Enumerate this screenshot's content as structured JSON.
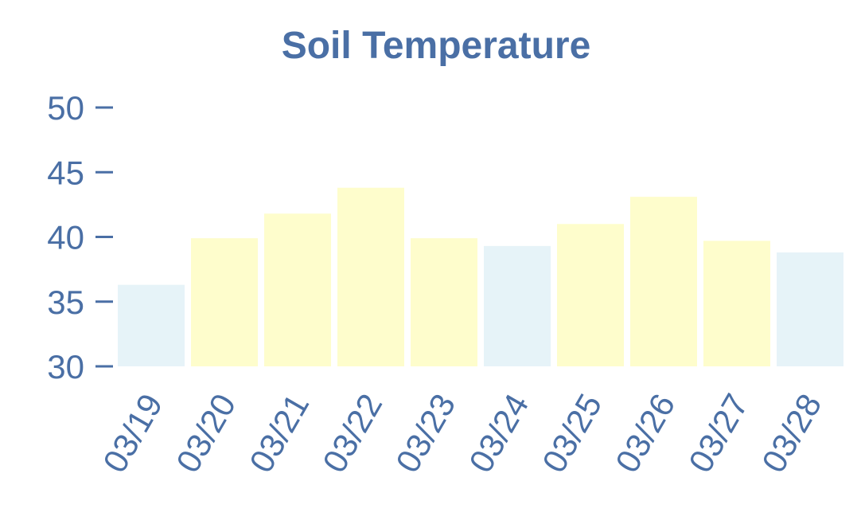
{
  "chart_data": {
    "type": "bar",
    "title": "Soil Temperature",
    "xlabel": "",
    "ylabel": "",
    "categories": [
      "03/19",
      "03/20",
      "03/21",
      "03/22",
      "03/23",
      "03/24",
      "03/25",
      "03/26",
      "03/27",
      "03/28"
    ],
    "values": [
      36.3,
      39.9,
      41.8,
      43.8,
      39.9,
      39.3,
      41.0,
      43.1,
      39.7,
      38.8
    ],
    "ylim": [
      30,
      50
    ],
    "yticks": [
      30,
      35,
      40,
      45,
      50
    ],
    "grid": false,
    "legend": "none",
    "colors": {
      "text": "#4a6fa5",
      "bar_default": "#fefdcc",
      "bar_low": "#e6f3f8"
    },
    "low_threshold": 39.5
  }
}
